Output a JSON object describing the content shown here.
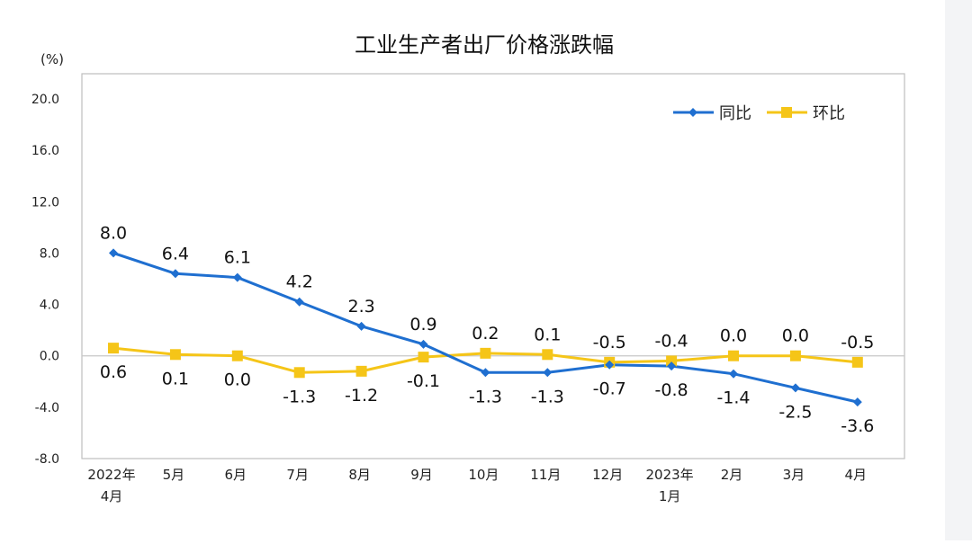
{
  "chart_data": {
    "type": "line",
    "title": "工业生产者出厂价格涨跌幅",
    "unit_label": "(%)",
    "categories": [
      [
        "2022年",
        "4月"
      ],
      [
        "5月"
      ],
      [
        "6月"
      ],
      [
        "7月"
      ],
      [
        "8月"
      ],
      [
        "9月"
      ],
      [
        "10月"
      ],
      [
        "11月"
      ],
      [
        "12月"
      ],
      [
        "2023年",
        "1月"
      ],
      [
        "2月"
      ],
      [
        "3月"
      ],
      [
        "4月"
      ]
    ],
    "y_ticks": [
      "20.0",
      "16.0",
      "12.0",
      "8.0",
      "4.0",
      "0.0",
      "-4.0",
      "-8.0"
    ],
    "ylim": [
      -8,
      20
    ],
    "grid": false,
    "legend_position": "top-right",
    "series": [
      {
        "name": "同比",
        "color": "#1f6fd0",
        "marker": "diamond",
        "values": [
          8.0,
          6.4,
          6.1,
          4.2,
          2.3,
          0.9,
          -1.3,
          -1.3,
          -0.7,
          -0.8,
          -1.4,
          -2.5,
          -3.6
        ],
        "labels": [
          "8.0",
          "6.4",
          "6.1",
          "4.2",
          "2.3",
          "0.9",
          "-1.3",
          "-1.3",
          "-0.7",
          "-0.8",
          "-1.4",
          "-2.5",
          "-3.6"
        ]
      },
      {
        "name": "环比",
        "color": "#f5c518",
        "marker": "square",
        "values": [
          0.6,
          0.1,
          0.0,
          -1.3,
          -1.2,
          -0.1,
          0.2,
          0.1,
          -0.5,
          -0.4,
          0.0,
          0.0,
          -0.5
        ],
        "labels": [
          "0.6",
          "0.1",
          "0.0",
          "-1.3",
          "-1.2",
          "-0.1",
          "0.2",
          "0.1",
          "-0.5",
          "-0.4",
          "0.0",
          "0.0",
          "-0.5"
        ]
      }
    ]
  }
}
